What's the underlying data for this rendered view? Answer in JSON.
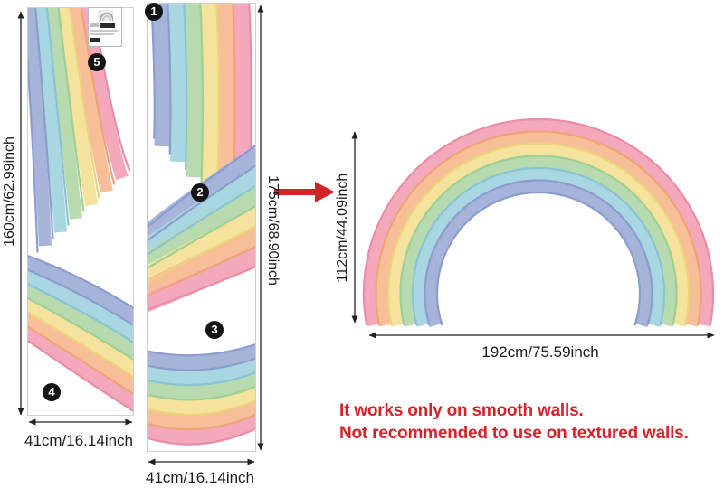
{
  "colors": {
    "lavender": "#a7b4da",
    "cyan": "#a8d7e2",
    "green": "#b7daae",
    "yellow": "#f5e29c",
    "orange": "#f6bf97",
    "pink": "#f3a9bb",
    "lavender_edge": "#8c9cce",
    "cyan_edge": "#8ac4d4",
    "green_edge": "#9ecf95",
    "yellow_edge": "#ecd47c",
    "orange_edge": "#f0a377",
    "pink_edge": "#eb8ca6",
    "dimension_line": "#222222",
    "text": "#1b1b1b",
    "accent_red": "#d52329",
    "badge_bg": "#141414",
    "badge_text": "#ffffff",
    "sheet_border": "#cfcfcf",
    "background": "#ffffff"
  },
  "stripe_order_inner_to_outer": [
    "lavender",
    "cyan",
    "green",
    "yellow",
    "orange",
    "pink"
  ],
  "pieces": [
    {
      "number": "1"
    },
    {
      "number": "2"
    },
    {
      "number": "3"
    },
    {
      "number": "4"
    },
    {
      "number": "5"
    }
  ],
  "dimensions": {
    "left_sheet_height": "160cm/62.99inch",
    "left_sheet_width": "41cm/16.14inch",
    "middle_sheet_height": "175cm/68.90inch",
    "middle_sheet_width": "41cm/16.14inch",
    "assembled_height": "112cm/44.09inch",
    "assembled_width": "192cm/75.59inch"
  },
  "warning": {
    "line1": "It works only on smooth walls.",
    "line2": "Not recommended to use on textured walls."
  }
}
